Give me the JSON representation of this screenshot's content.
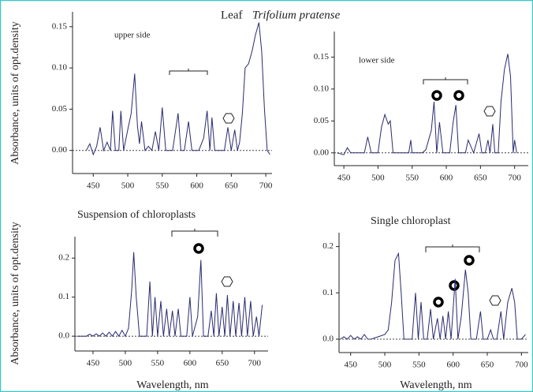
{
  "header": {
    "title": "Leaf",
    "species": "Trifolium pratense"
  },
  "chart_data": [
    {
      "type": "line",
      "annotation": "upper side",
      "y_label": "Absorbance, units of opt.density",
      "color": "#2a2a70",
      "zero_line": true,
      "x": [
        440,
        445,
        450,
        455,
        460,
        465,
        470,
        475,
        478,
        482,
        487,
        490,
        494,
        500,
        505,
        510,
        514,
        517,
        520,
        525,
        530,
        535,
        540,
        545,
        550,
        555,
        565,
        573,
        577,
        582,
        588,
        593,
        603,
        610,
        615,
        619,
        622,
        626,
        640,
        645,
        650,
        655,
        659,
        662,
        666,
        670,
        675,
        680,
        685,
        690,
        694,
        698,
        702,
        706
      ],
      "values": [
        0.0,
        0.008,
        -0.005,
        0.005,
        0.028,
        0.0,
        0.01,
        0.0,
        0.048,
        0.0,
        0.0,
        0.048,
        0.0,
        0.025,
        0.045,
        0.093,
        0.03,
        0.008,
        0.035,
        0.0,
        0.005,
        0.0,
        0.023,
        0.0,
        0.052,
        0.0,
        0.0,
        0.045,
        0.0,
        0.0,
        0.035,
        0.0,
        0.0,
        0.015,
        0.048,
        0.0,
        0.04,
        0.0,
        0.0,
        0.028,
        0.0,
        0.025,
        0.0,
        0.01,
        0.045,
        0.1,
        0.105,
        0.12,
        0.14,
        0.155,
        0.12,
        0.05,
        0.0,
        -0.005
      ],
      "xlim": [
        420,
        709
      ],
      "ylim": [
        -0.028,
        0.168
      ],
      "xticks": [
        450,
        500,
        550,
        600,
        650,
        700
      ],
      "yticks": [
        {
          "value": 0,
          "label": "0.00"
        },
        0.05,
        {
          "value": 0.1,
          "label": "0.10"
        },
        0.15
      ]
    },
    {
      "type": "line",
      "annotation": "lower side",
      "color": "#2a2a70",
      "zero_line": true,
      "x": [
        440,
        450,
        455,
        460,
        470,
        480,
        485,
        490,
        500,
        505,
        510,
        515,
        518,
        522,
        530,
        545,
        548,
        550,
        565,
        570,
        578,
        582,
        586,
        590,
        595,
        605,
        610,
        614,
        618,
        628,
        632,
        640,
        648,
        652,
        657,
        661,
        664,
        668,
        671,
        676,
        680,
        685,
        690,
        694,
        698,
        700,
        703
      ],
      "values": [
        0.0,
        -0.003,
        0.008,
        0.0,
        0.0,
        0.0,
        0.025,
        0.0,
        0.0,
        0.04,
        0.06,
        0.045,
        0.05,
        0.0,
        0.0,
        0.0,
        0.02,
        0.0,
        0.0,
        0.005,
        0.035,
        0.08,
        0.0,
        0.048,
        0.0,
        0.0,
        0.048,
        0.075,
        0.0,
        0.0,
        0.02,
        0.0,
        0.03,
        0.0,
        0.0,
        0.02,
        0.0,
        0.045,
        0.0,
        0.0,
        0.08,
        0.13,
        0.155,
        0.12,
        0.0,
        0.02,
        0.0
      ],
      "xlim": [
        436,
        720
      ],
      "ylim": [
        -0.02,
        0.19
      ],
      "xticks": [
        450,
        500,
        550,
        600,
        650,
        700
      ],
      "yticks": [
        {
          "value": 0,
          "label": "0.00"
        },
        0.05,
        {
          "value": 0.1,
          "label": "0.10"
        },
        0.15
      ]
    },
    {
      "type": "line",
      "title": "Suspension of  chloroplasts",
      "y_label": "Absorbance, units of opt.density",
      "x_label": "Wavelength, nm",
      "color": "#2a2a70",
      "zero_line": true,
      "x": [
        425,
        440,
        445,
        450,
        455,
        460,
        465,
        470,
        475,
        480,
        485,
        490,
        495,
        500,
        505,
        510,
        513,
        517,
        522,
        533,
        538,
        542,
        546,
        550,
        555,
        559,
        564,
        568,
        573,
        577,
        582,
        586,
        595,
        600,
        604,
        612,
        617,
        621,
        628,
        633,
        637,
        641,
        645,
        650,
        654,
        658,
        662,
        667,
        671,
        676,
        680,
        685,
        689,
        694,
        698,
        703,
        707,
        712
      ],
      "values": [
        0,
        0,
        0.005,
        0,
        0.006,
        0,
        0.008,
        0,
        0.01,
        0,
        0.012,
        0,
        0.015,
        0,
        0.02,
        0.12,
        0.215,
        0.1,
        0,
        0,
        0.14,
        0,
        0.1,
        0,
        0.09,
        0,
        0.07,
        0,
        0.065,
        0,
        0.07,
        0,
        0,
        0.1,
        0,
        0.05,
        0.195,
        0,
        0,
        0.065,
        0,
        0.11,
        0,
        0.075,
        0,
        0.105,
        0,
        0.09,
        0,
        0.085,
        0,
        0.1,
        0,
        0.09,
        0,
        0.05,
        0,
        0.08
      ],
      "xlim": [
        422,
        721
      ],
      "ylim": [
        -0.038,
        0.255
      ],
      "xticks": [
        450,
        500,
        550,
        600,
        650,
        700
      ],
      "yticks": [
        {
          "value": 0,
          "label": "0.0"
        },
        0.1,
        0.2
      ]
    },
    {
      "type": "line",
      "title": "Single chloroplast",
      "x_label": "Wavelength, nm",
      "color": "#2a2a70",
      "zero_line": true,
      "x": [
        435,
        440,
        445,
        450,
        455,
        460,
        465,
        470,
        475,
        480,
        490,
        500,
        505,
        510,
        515,
        520,
        524,
        528,
        540,
        545,
        549,
        553,
        557,
        562,
        567,
        571,
        577,
        581,
        585,
        589,
        593,
        597,
        603,
        607,
        612,
        618,
        622,
        626,
        634,
        640,
        644,
        650,
        655,
        659,
        664,
        670,
        674,
        680,
        686,
        690,
        694,
        700,
        706
      ],
      "values": [
        0,
        0.005,
        0,
        0.008,
        0,
        0.005,
        0,
        0.01,
        0,
        0,
        0.005,
        0.01,
        0.02,
        0.08,
        0.17,
        0.185,
        0.1,
        0,
        0,
        0.1,
        0,
        0.08,
        0,
        0,
        0.065,
        0,
        0.045,
        0,
        0.05,
        0,
        0.06,
        0,
        0.13,
        0,
        0.05,
        0.15,
        0.1,
        0,
        0,
        0.06,
        0,
        0,
        0.02,
        0,
        0,
        0.06,
        0,
        0.08,
        0.11,
        0.08,
        0,
        0,
        0.01
      ],
      "xlim": [
        433,
        710
      ],
      "ylim": [
        -0.029,
        0.23
      ],
      "xticks": [
        450,
        500,
        550,
        600,
        650,
        700
      ],
      "yticks": [
        {
          "value": 0,
          "label": "0.0"
        },
        0.1,
        0.2
      ]
    }
  ]
}
